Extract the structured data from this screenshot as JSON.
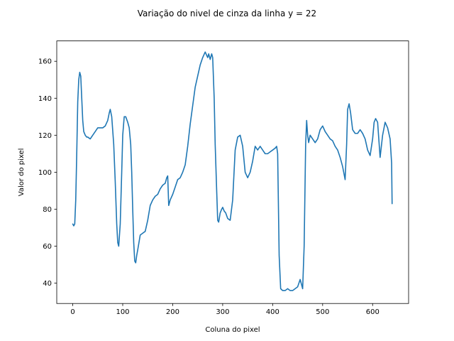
{
  "chart_data": {
    "type": "line",
    "title": "Variação do nivel de cinza da linha y = 22",
    "xlabel": "Coluna do pixel",
    "ylabel": "Valor do pixel",
    "xlim": [
      -32,
      672
    ],
    "ylim": [
      29,
      171
    ],
    "xticks": [
      0,
      100,
      200,
      300,
      400,
      500,
      600
    ],
    "yticks": [
      40,
      60,
      80,
      100,
      120,
      140,
      160
    ],
    "grid": false,
    "color": "#1f77b4",
    "series": [
      {
        "x": [
          0,
          2,
          4,
          6,
          8,
          10,
          12,
          14,
          16,
          18,
          20,
          22,
          25,
          28,
          30,
          35,
          40,
          45,
          50,
          55,
          60,
          65,
          70,
          73,
          75,
          78,
          82,
          85,
          88,
          90,
          92,
          95,
          98,
          100,
          103,
          106,
          110,
          113,
          116,
          118,
          120,
          122,
          124,
          126,
          128,
          130,
          135,
          140,
          145,
          150,
          155,
          160,
          165,
          170,
          175,
          180,
          185,
          188,
          190,
          192,
          195,
          200,
          205,
          210,
          215,
          220,
          225,
          230,
          235,
          240,
          245,
          250,
          255,
          260,
          265,
          270,
          272,
          275,
          278,
          280,
          283,
          285,
          288,
          290,
          292,
          295,
          298,
          300,
          303,
          306,
          310,
          315,
          320,
          325,
          330,
          335,
          340,
          345,
          350,
          355,
          360,
          365,
          370,
          375,
          380,
          385,
          390,
          395,
          400,
          405,
          408,
          410,
          413,
          416,
          420,
          425,
          430,
          435,
          440,
          445,
          450,
          455,
          460,
          463,
          466,
          468,
          470,
          472,
          475,
          480,
          485,
          490,
          495,
          500,
          505,
          510,
          515,
          520,
          525,
          530,
          535,
          540,
          545,
          548,
          550,
          553,
          556,
          560,
          565,
          570,
          575,
          580,
          585,
          590,
          595,
          600,
          603,
          606,
          610,
          615,
          620,
          625,
          630,
          635,
          638,
          639
        ],
        "y": [
          72,
          71,
          72,
          85,
          110,
          138,
          150,
          154,
          152,
          140,
          128,
          122,
          120,
          119,
          119,
          118,
          120,
          122,
          124,
          124,
          124,
          125,
          128,
          132,
          134,
          130,
          115,
          95,
          72,
          62,
          60,
          72,
          100,
          120,
          130,
          130,
          127,
          124,
          115,
          100,
          80,
          62,
          52,
          51,
          55,
          58,
          66,
          67,
          68,
          74,
          82,
          85,
          87,
          88,
          91,
          93,
          94,
          97,
          98,
          82,
          85,
          88,
          92,
          96,
          97,
          100,
          104,
          114,
          126,
          136,
          146,
          152,
          158,
          162,
          165,
          162,
          164,
          161,
          164,
          162,
          140,
          115,
          90,
          74,
          73,
          78,
          80,
          81,
          79,
          78,
          75,
          74,
          85,
          112,
          119,
          120,
          114,
          100,
          97,
          100,
          106,
          114,
          112,
          114,
          112,
          110,
          110,
          111,
          112,
          113,
          114,
          110,
          55,
          37,
          36,
          36,
          37,
          36,
          36,
          37,
          38,
          42,
          37,
          60,
          115,
          128,
          120,
          116,
          120,
          118,
          116,
          118,
          123,
          125,
          122,
          120,
          118,
          117,
          114,
          112,
          108,
          103,
          96,
          115,
          134,
          137,
          132,
          123,
          121,
          121,
          123,
          121,
          118,
          112,
          109,
          118,
          127,
          129,
          127,
          108,
          120,
          127,
          124,
          118,
          105,
          83
        ]
      }
    ]
  }
}
